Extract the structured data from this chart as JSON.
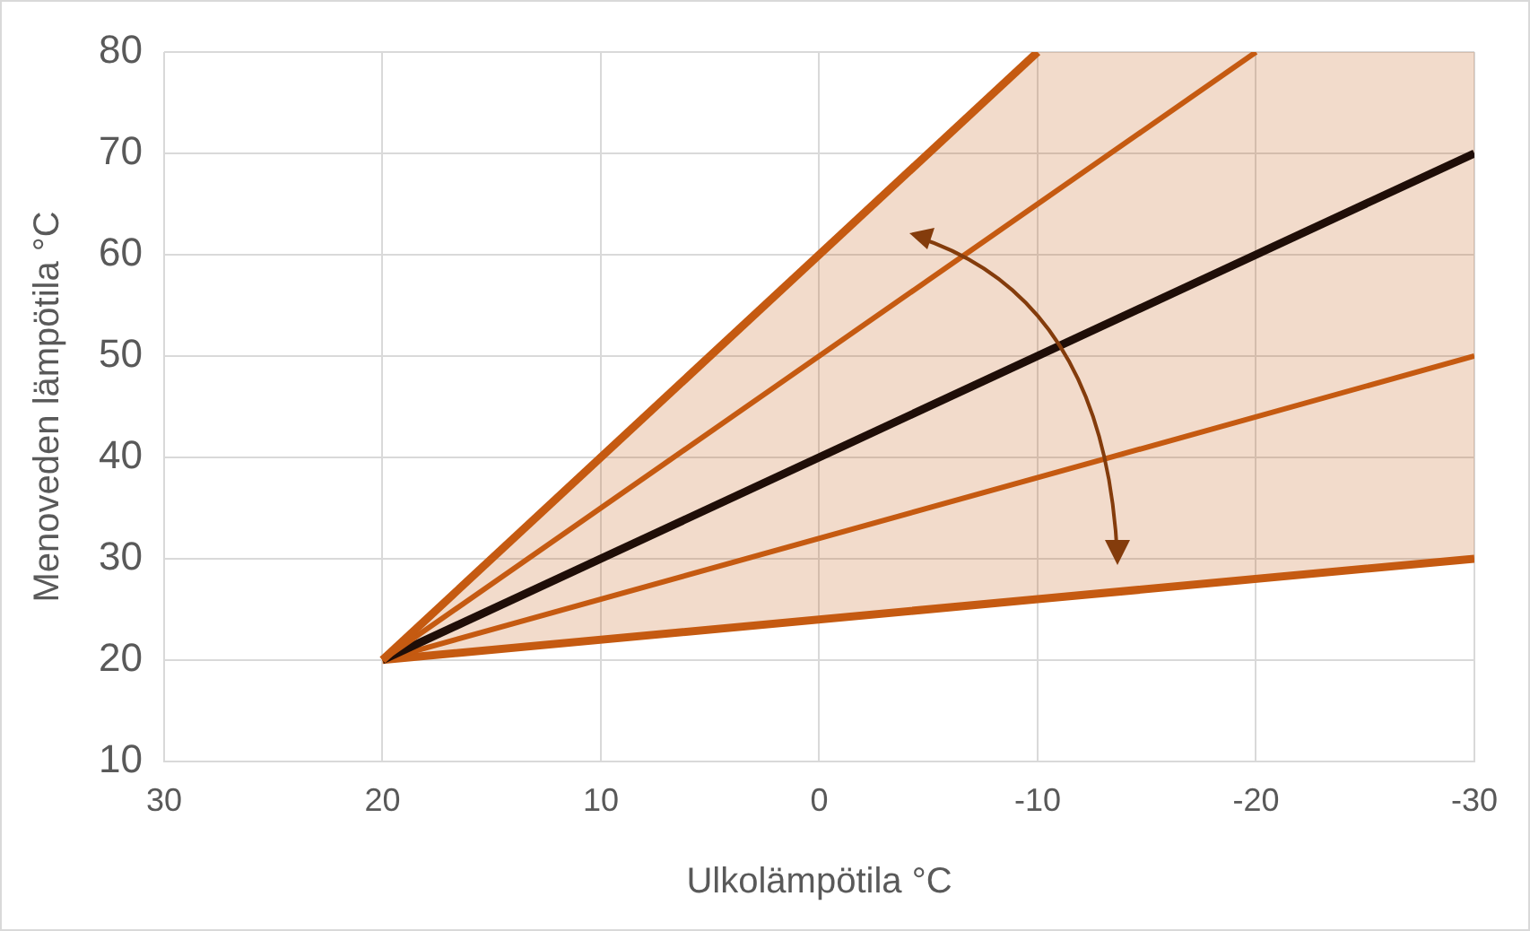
{
  "chart_data": {
    "type": "line",
    "xlabel": "Ulkolämpötila °C",
    "ylabel": "Menoveden lämpötila °C",
    "xlim": [
      30,
      -30
    ],
    "xticks": [
      30,
      20,
      10,
      0,
      -10,
      -20,
      -30
    ],
    "ylim": [
      10,
      80
    ],
    "yticks": [
      10,
      20,
      30,
      40,
      50,
      60,
      70,
      80
    ],
    "grid": true,
    "legend": false,
    "marker": "none",
    "line_style": "solid",
    "series": [
      {
        "color": "#c55a11",
        "x": [
          20,
          -10
        ],
        "values": [
          20,
          80
        ]
      },
      {
        "color": "#c55a11",
        "x": [
          20,
          -20
        ],
        "values": [
          20,
          80
        ]
      },
      {
        "color": "#1f0e08",
        "x": [
          20,
          -30
        ],
        "values": [
          20,
          70
        ]
      },
      {
        "color": "#c55a11",
        "x": [
          20,
          -30
        ],
        "values": [
          20,
          50
        ]
      },
      {
        "color": "#c55a11",
        "x": [
          20,
          -10,
          -30
        ],
        "values": [
          20,
          26,
          30
        ],
        "lower": [
          20,
          26,
          30
        ],
        "upper": [
          20,
          80,
          80
        ]
      }
    ]
  }
}
